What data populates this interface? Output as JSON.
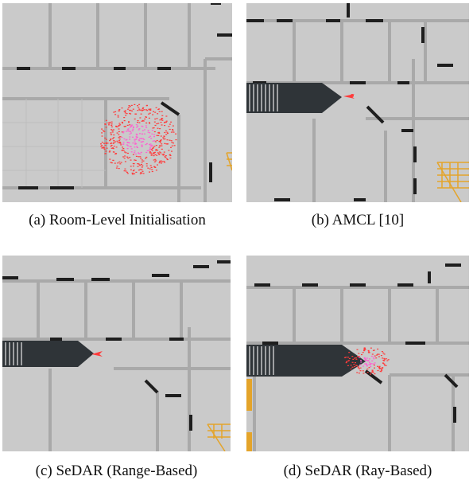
{
  "figure": {
    "panels": [
      {
        "id": "a",
        "caption": "(a) Room-Level Initialisation"
      },
      {
        "id": "b",
        "caption": "(b) AMCL [10]"
      },
      {
        "id": "c",
        "caption": "(c) SeDAR (Range-Based)"
      },
      {
        "id": "d",
        "caption": "(d) SeDAR (Ray-Based)"
      }
    ]
  },
  "colors": {
    "floor": "#cacaca",
    "wall": "#a9a9a9",
    "door": "#1e1e1e",
    "scan": "#2f3438",
    "particle": "#ff3b3b",
    "particle_core": "#ff5fd0",
    "stairs": "#e4a42a"
  }
}
